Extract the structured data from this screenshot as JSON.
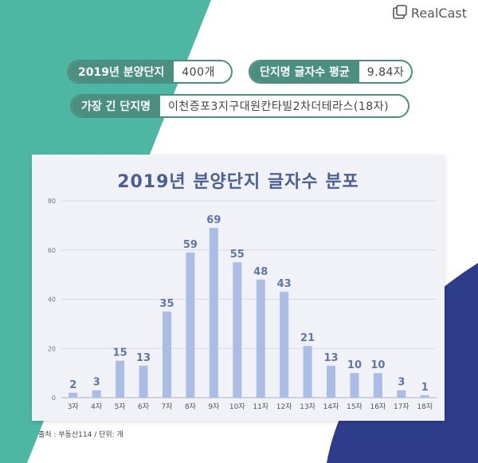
{
  "brand": {
    "name": "RealCast"
  },
  "stats": {
    "total_label": "2019년 분양단지",
    "total_value": "400개",
    "avg_label": "단지명 글자수 평균",
    "avg_value": "9.84자",
    "longest_label": "가장 긴 단지명",
    "longest_value": "이천증포3지구대원칸타빌2차더테라스(18자)"
  },
  "colors": {
    "teal": "#4eb7a3",
    "dark_teal": "#4a8f80",
    "navy": "#2e3c8c",
    "bar": "#aabde5",
    "label": "#5f75a8"
  },
  "chart_data": {
    "type": "bar",
    "title": "2019년 분양단지 글자수 분포",
    "categories": [
      "3자",
      "4자",
      "5자",
      "6자",
      "7자",
      "8자",
      "9자",
      "10자",
      "11자",
      "12자",
      "13자",
      "14자",
      "15자",
      "16자",
      "17자",
      "18자"
    ],
    "values": [
      2,
      3,
      15,
      13,
      35,
      59,
      69,
      55,
      48,
      43,
      21,
      13,
      10,
      10,
      3,
      1
    ],
    "ylim": [
      0,
      80
    ],
    "yticks": [
      0,
      20,
      40,
      60,
      80
    ],
    "grid": true,
    "legend": "none"
  },
  "source": "출처 : 부동산114 / 단위: 개"
}
